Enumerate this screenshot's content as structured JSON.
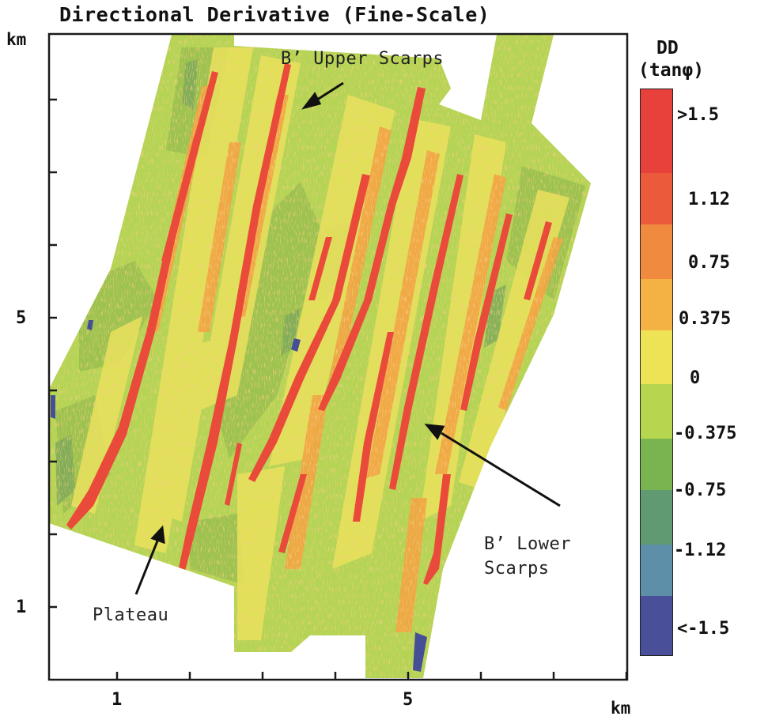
{
  "title": "Directional Derivative (Fine-Scale)",
  "y_axis": {
    "unit": "km",
    "ticks": [
      "5",
      "1"
    ]
  },
  "x_axis": {
    "unit": "km",
    "ticks": [
      "1",
      "5"
    ]
  },
  "legend": {
    "title_line1": "DD",
    "title_line2": "(tanφ)",
    "labels": [
      ">1.5",
      "1.12",
      "0.75",
      "0.375",
      "0",
      "-0.375",
      "-0.75",
      "-1.12",
      "<-1.5"
    ],
    "colors": [
      "#e8403a",
      "#ec5a3c",
      "#f08a3e",
      "#f4b244",
      "#eee354",
      "#b5d64e",
      "#79b450",
      "#5f9a72",
      "#5d8fa8",
      "#4a4f9a"
    ]
  },
  "annotations": {
    "upper_scarps": "B’ Upper Scarps",
    "lower_scarps_line1": "B’ Lower",
    "lower_scarps_line2": "Scarps",
    "plateau": "Plateau"
  },
  "colors": {
    "background_green": "#b3d454",
    "yellow": "#e8e257",
    "orange": "#f2a443",
    "red": "#ea4a3a",
    "dark_green": "#6c9c57",
    "blue": "#454f96"
  }
}
